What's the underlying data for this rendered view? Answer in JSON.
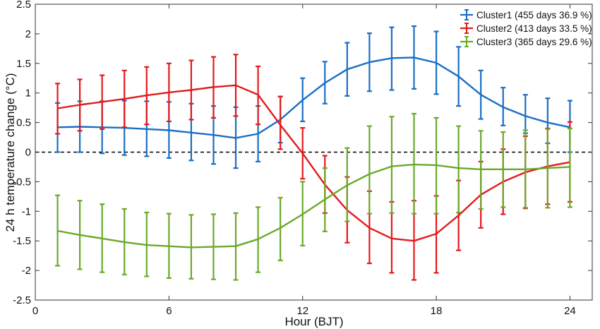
{
  "chart_data": {
    "type": "line",
    "xlabel": "Hour (BJT)",
    "ylabel": "24 h temperature change (°C)",
    "xlim": [
      0,
      25
    ],
    "ylim": [
      -2.5,
      2.5
    ],
    "xticks": [
      0,
      6,
      12,
      18,
      24
    ],
    "xtick_labels": [
      "0",
      "6",
      "12",
      "18",
      "24"
    ],
    "yticks": [
      -2.5,
      -2,
      -1.5,
      -1,
      -0.5,
      0,
      0.5,
      1,
      1.5,
      2,
      2.5
    ],
    "ytick_labels": [
      "-2.5",
      "-2",
      "-1.5",
      "-1",
      "-0.5",
      "0",
      "0.5",
      "1",
      "1.5",
      "2",
      "2.5"
    ],
    "grid": false,
    "reference_line": {
      "y": 0,
      "style": "dashed",
      "color": "#000000"
    },
    "legend": {
      "position": "top-right"
    },
    "x": [
      1,
      2,
      3,
      4,
      5,
      6,
      7,
      8,
      9,
      10,
      11,
      12,
      13,
      14,
      15,
      16,
      17,
      18,
      19,
      20,
      21,
      22,
      23,
      24
    ],
    "series": [
      {
        "name": "Cluster1 (455 days 36.9 %)",
        "color": "#1a6fc4",
        "values": [
          0.42,
          0.43,
          0.42,
          0.41,
          0.39,
          0.37,
          0.33,
          0.29,
          0.24,
          0.31,
          0.55,
          0.88,
          1.17,
          1.4,
          1.52,
          1.59,
          1.6,
          1.51,
          1.28,
          0.97,
          0.76,
          0.61,
          0.5,
          0.42
        ],
        "err_low": [
          0.0,
          0.0,
          -0.02,
          -0.05,
          -0.07,
          -0.1,
          -0.14,
          -0.2,
          -0.27,
          -0.16,
          0.16,
          0.52,
          0.82,
          0.95,
          1.03,
          1.05,
          1.07,
          0.98,
          0.78,
          0.56,
          0.45,
          0.32,
          0.15,
          0.0
        ],
        "err_high": [
          0.83,
          0.86,
          0.86,
          0.87,
          0.86,
          0.85,
          0.82,
          0.78,
          0.76,
          0.78,
          0.94,
          1.25,
          1.53,
          1.85,
          2.01,
          2.11,
          2.13,
          2.04,
          1.78,
          1.38,
          1.09,
          0.97,
          0.91,
          0.87
        ]
      },
      {
        "name": "Cluster2 (413 days 33.5 %)",
        "color": "#e31a1c",
        "values": [
          0.74,
          0.8,
          0.85,
          0.9,
          0.96,
          1.01,
          1.05,
          1.1,
          1.13,
          0.97,
          0.46,
          -0.02,
          -0.55,
          -0.98,
          -1.28,
          -1.46,
          -1.5,
          -1.38,
          -1.07,
          -0.72,
          -0.5,
          -0.34,
          -0.24,
          -0.17
        ],
        "err_low": [
          0.31,
          0.36,
          0.39,
          0.42,
          0.47,
          0.52,
          0.55,
          0.58,
          0.61,
          0.47,
          0.05,
          -0.45,
          -1.03,
          -1.53,
          -1.88,
          -2.04,
          -2.16,
          -2.04,
          -1.66,
          -1.28,
          -1.05,
          -0.95,
          -0.88,
          -0.84
        ],
        "err_high": [
          1.16,
          1.23,
          1.3,
          1.38,
          1.44,
          1.5,
          1.55,
          1.61,
          1.65,
          1.45,
          0.94,
          0.41,
          -0.06,
          -0.42,
          -0.66,
          -0.84,
          -0.82,
          -0.74,
          -0.48,
          -0.16,
          0.05,
          0.27,
          0.4,
          0.51
        ]
      },
      {
        "name": "Cluster3 (365 days 29.6 %)",
        "color": "#6aaa2a",
        "values": [
          -1.33,
          -1.4,
          -1.46,
          -1.52,
          -1.57,
          -1.59,
          -1.61,
          -1.6,
          -1.59,
          -1.47,
          -1.28,
          -1.05,
          -0.8,
          -0.56,
          -0.37,
          -0.24,
          -0.21,
          -0.22,
          -0.27,
          -0.29,
          -0.29,
          -0.29,
          -0.27,
          -0.25
        ],
        "err_low": [
          -1.92,
          -1.98,
          -2.03,
          -2.07,
          -2.1,
          -2.13,
          -2.14,
          -2.15,
          -2.16,
          -2.03,
          -1.83,
          -1.58,
          -1.34,
          -1.17,
          -1.04,
          -1.03,
          -1.04,
          -1.04,
          -1.02,
          -0.96,
          -0.93,
          -0.94,
          -0.94,
          -0.93
        ],
        "err_high": [
          -0.73,
          -0.82,
          -0.88,
          -0.96,
          -1.02,
          -1.04,
          -1.06,
          -1.05,
          -1.03,
          -0.93,
          -0.77,
          -0.5,
          -0.27,
          0.07,
          0.44,
          0.6,
          0.65,
          0.58,
          0.44,
          0.36,
          0.34,
          0.37,
          0.39,
          0.4
        ]
      }
    ]
  }
}
